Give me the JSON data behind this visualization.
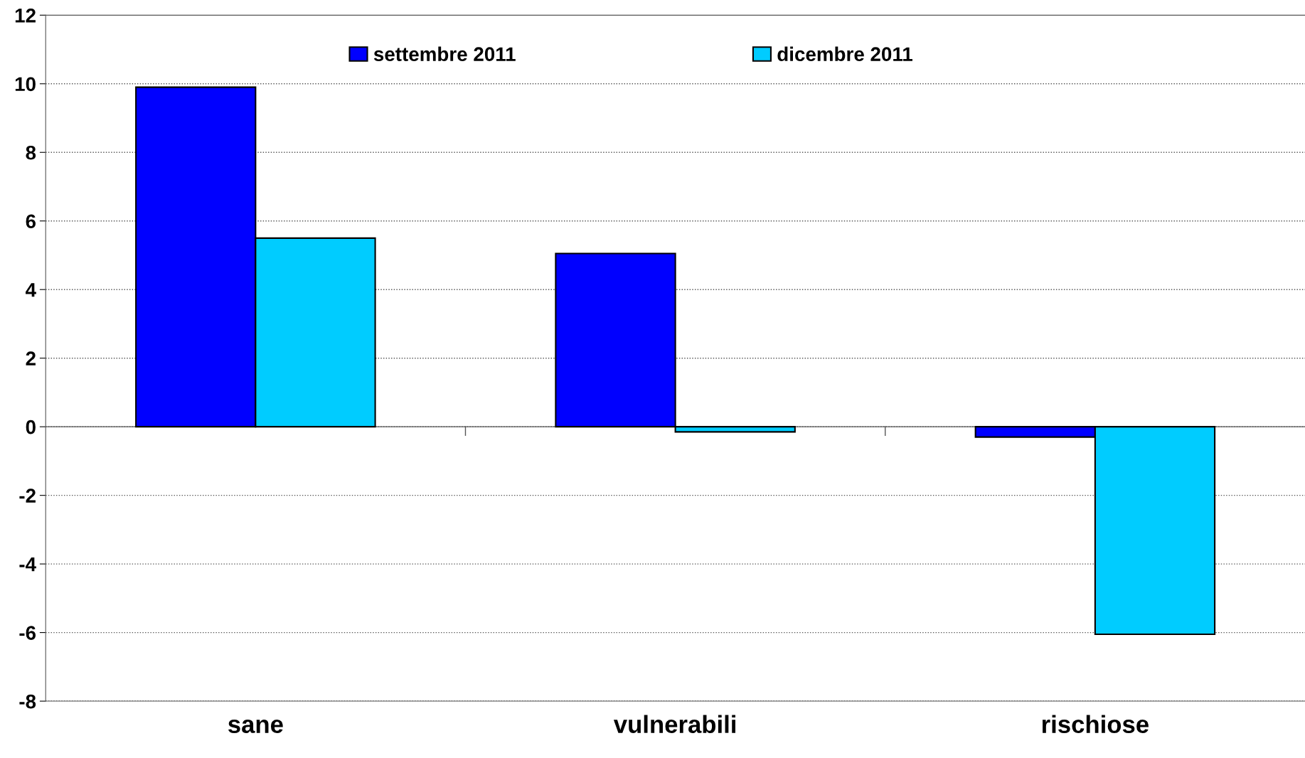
{
  "chart_data": {
    "type": "bar",
    "categories": [
      "sane",
      "vulnerabili",
      "rischiose"
    ],
    "series": [
      {
        "name": "settembre 2011",
        "color": "#0000ff",
        "values": [
          9.9,
          5.05,
          -0.3
        ]
      },
      {
        "name": "dicembre 2011",
        "color": "#00ccff",
        "values": [
          5.5,
          -0.15,
          -6.05
        ]
      }
    ],
    "ylim": [
      -8,
      12
    ],
    "yticks": [
      -8,
      -6,
      -4,
      -2,
      0,
      2,
      4,
      6,
      8,
      10,
      12
    ],
    "grid": "y",
    "legend": "top"
  }
}
